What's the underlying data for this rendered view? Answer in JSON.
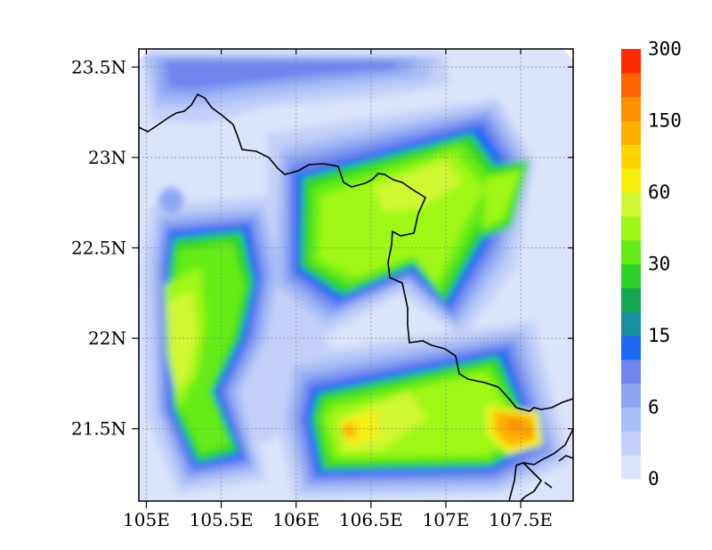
{
  "map": {
    "type": "filled-contour",
    "x_ticks": [
      "105E",
      "105.5E",
      "106E",
      "106.5E",
      "107E",
      "107.5E"
    ],
    "y_ticks": [
      "23.5N",
      "23N",
      "22.5N",
      "22N",
      "21.5N"
    ],
    "x_values": [
      105.0,
      105.5,
      106.0,
      106.5,
      107.0,
      107.5
    ],
    "y_values": [
      23.5,
      23.0,
      22.5,
      22.0,
      21.5
    ],
    "xlim": [
      104.95,
      107.85
    ],
    "ylim": [
      21.1,
      23.6
    ],
    "grid": true
  },
  "colorbar": {
    "labels": [
      "0",
      "6",
      "15",
      "30",
      "60",
      "150",
      "300"
    ],
    "colors": [
      "#dbe4fb",
      "#c3d1f8",
      "#a9bef6",
      "#8da6f3",
      "#6f85ee",
      "#1c6af5",
      "#1990a2",
      "#12a84f",
      "#2bd229",
      "#65ec18",
      "#9ef712",
      "#d0f733",
      "#f8ee0b",
      "#ffd500",
      "#ffb000",
      "#ff9000",
      "#ff6400",
      "#ff2a00"
    ]
  }
}
